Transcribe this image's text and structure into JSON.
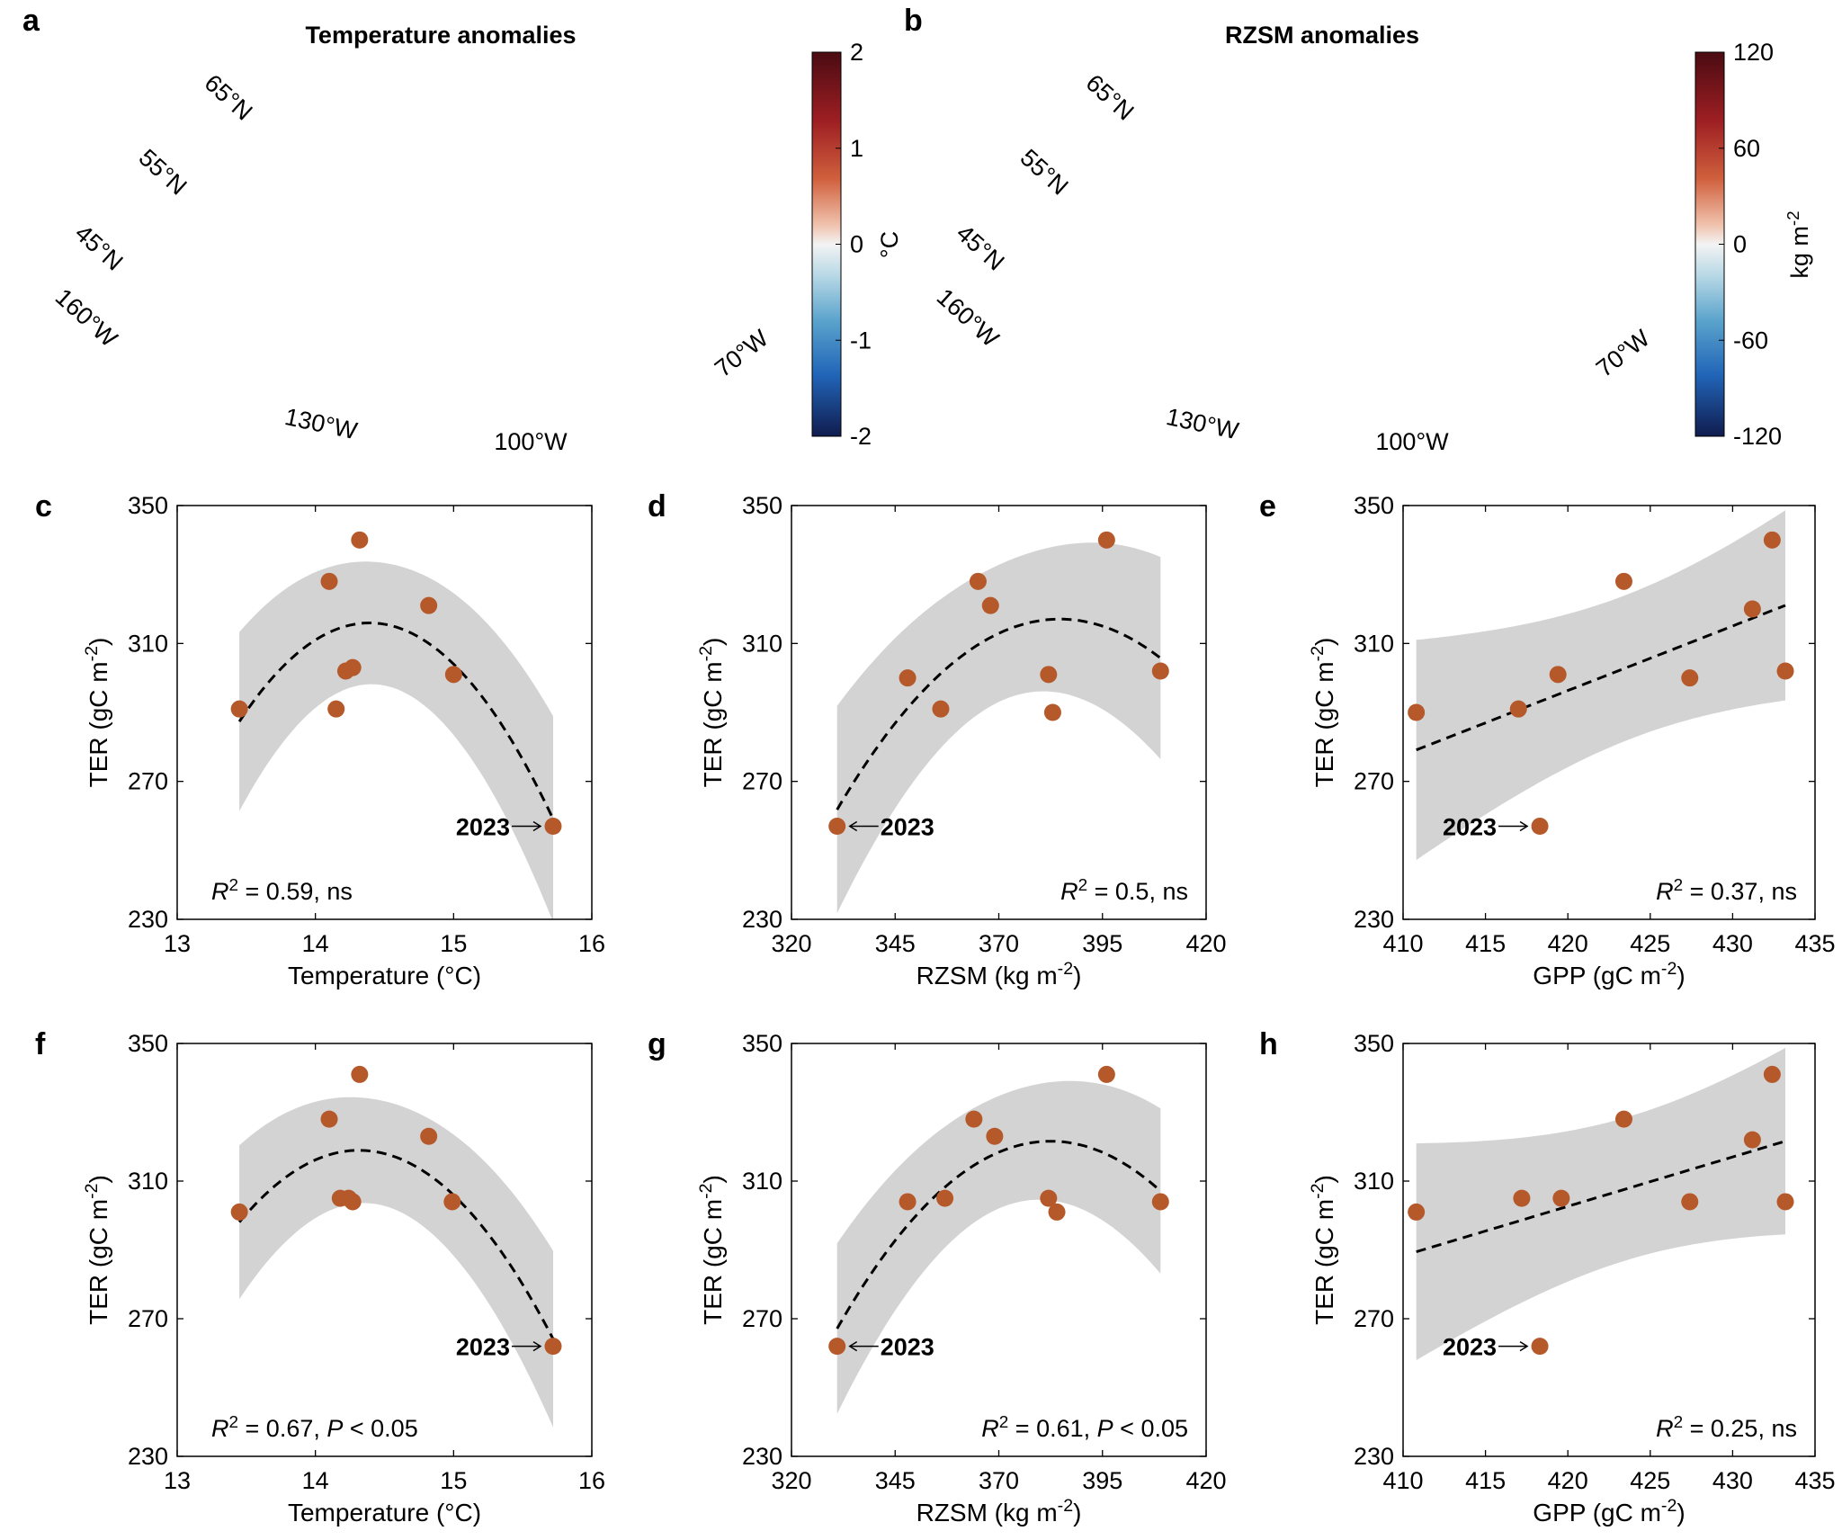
{
  "colors": {
    "point": "#B5582A",
    "ci": "#D3D3D3",
    "land": "#C8C8C8",
    "warm_dark": "#5E0D14",
    "warm_mid": "#C0392B",
    "warm_light": "#E8A188",
    "neutral": "#F4F4F4",
    "cool_light": "#A9D0E0",
    "cool_mid": "#2F79C4",
    "cool_dark": "#0E1F52"
  },
  "maps": [
    {
      "label": "a",
      "title": "Temperature anomalies",
      "colorbar": {
        "ticks": [
          "2",
          "1",
          "0",
          "-1",
          "-2"
        ],
        "unit_label": "°C",
        "unit_sup": ""
      },
      "lat_labels": [
        "65°N",
        "55°N",
        "45°N"
      ],
      "lon_labels": [
        "160°W",
        "130°W",
        "100°W",
        "70°W"
      ]
    },
    {
      "label": "b",
      "title": "RZSM anomalies",
      "colorbar": {
        "ticks": [
          "120",
          "60",
          "0",
          "-60",
          "-120"
        ],
        "unit_label": "kg m",
        "unit_sup": "-2"
      },
      "lat_labels": [
        "65°N",
        "55°N",
        "45°N"
      ],
      "lon_labels": [
        "160°W",
        "130°W",
        "100°W",
        "70°W"
      ]
    }
  ],
  "chart_data": [
    {
      "label": "c",
      "type": "scatter",
      "xlabel": "Temperature (°C)",
      "xlabel_sup": "",
      "xlabel_close": "",
      "ylabel": "TER (gC m",
      "ylabel_sup": "-2",
      "ylabel_close": ")",
      "xlim": [
        13,
        16
      ],
      "ylim": [
        230,
        350
      ],
      "xticks": [
        "13",
        "14",
        "15",
        "16"
      ],
      "yticks": [
        "230",
        "270",
        "310",
        "350"
      ],
      "x": [
        13.45,
        14.1,
        14.15,
        14.22,
        14.27,
        14.32,
        14.82,
        15.0,
        15.72
      ],
      "y": [
        291,
        328,
        291,
        302,
        303,
        340,
        321,
        301,
        257
      ],
      "fit": {
        "type": "quadratic",
        "x_range": [
          13.45,
          15.72
        ]
      },
      "highlight": {
        "year": "2023",
        "index": 8,
        "side": "left"
      },
      "stat": {
        "r2": "0.59",
        "sig_prefix": ", ",
        "sig_italic": "",
        "sig_rest": "ns",
        "align": "left"
      }
    },
    {
      "label": "d",
      "type": "scatter",
      "xlabel": "RZSM (kg m",
      "xlabel_sup": "-2",
      "xlabel_close": ")",
      "ylabel": "TER (gC m",
      "ylabel_sup": "-2",
      "ylabel_close": ")",
      "xlim": [
        320,
        420
      ],
      "ylim": [
        230,
        350
      ],
      "xticks": [
        "320",
        "345",
        "370",
        "395",
        "420"
      ],
      "yticks": [
        "230",
        "270",
        "310",
        "350"
      ],
      "x": [
        331,
        348,
        356,
        365,
        368,
        382,
        383,
        396,
        409
      ],
      "y": [
        257,
        300,
        291,
        328,
        321,
        301,
        290,
        340,
        302
      ],
      "fit": {
        "type": "quadratic",
        "x_range": [
          331,
          409
        ]
      },
      "highlight": {
        "year": "2023",
        "index": 0,
        "side": "right"
      },
      "stat": {
        "r2": "0.5",
        "sig_prefix": ", ",
        "sig_italic": "",
        "sig_rest": "ns",
        "align": "right"
      }
    },
    {
      "label": "e",
      "type": "scatter",
      "xlabel": "GPP (gC m",
      "xlabel_sup": "-2",
      "xlabel_close": ")",
      "ylabel": "TER (gC m",
      "ylabel_sup": "-2",
      "ylabel_close": ")",
      "xlim": [
        410,
        435
      ],
      "ylim": [
        230,
        350
      ],
      "xticks": [
        "410",
        "415",
        "420",
        "425",
        "430",
        "435"
      ],
      "yticks": [
        "230",
        "270",
        "310",
        "350"
      ],
      "x": [
        410.8,
        417,
        418.3,
        419.4,
        423.4,
        427.4,
        431.2,
        432.4,
        433.2
      ],
      "y": [
        290,
        291,
        257,
        301,
        328,
        300,
        320,
        340,
        302
      ],
      "fit": {
        "type": "linear",
        "x_range": [
          410.8,
          433.2
        ]
      },
      "highlight": {
        "year": "2023",
        "index": 2,
        "side": "left"
      },
      "stat": {
        "r2": "0.37",
        "sig_prefix": ", ",
        "sig_italic": "",
        "sig_rest": "ns",
        "align": "right"
      }
    },
    {
      "label": "f",
      "type": "scatter",
      "xlabel": "Temperature (°C)",
      "xlabel_sup": "",
      "xlabel_close": "",
      "ylabel": "TER (gC m",
      "ylabel_sup": "-2",
      "ylabel_close": ")",
      "xlim": [
        13,
        16
      ],
      "ylim": [
        230,
        350
      ],
      "xticks": [
        "13",
        "14",
        "15",
        "16"
      ],
      "yticks": [
        "230",
        "270",
        "310",
        "350"
      ],
      "x": [
        13.45,
        14.1,
        14.18,
        14.24,
        14.27,
        14.32,
        14.82,
        14.99,
        15.72
      ],
      "y": [
        301,
        328,
        305,
        305,
        304,
        341,
        323,
        304,
        262
      ],
      "fit": {
        "type": "quadratic",
        "x_range": [
          13.45,
          15.72
        ]
      },
      "highlight": {
        "year": "2023",
        "index": 8,
        "side": "left"
      },
      "stat": {
        "r2": "0.67",
        "sig_prefix": ", ",
        "sig_italic": "P",
        "sig_rest": " < 0.05",
        "align": "left"
      }
    },
    {
      "label": "g",
      "type": "scatter",
      "xlabel": "RZSM (kg m",
      "xlabel_sup": "-2",
      "xlabel_close": ")",
      "ylabel": "TER (gC m",
      "ylabel_sup": "-2",
      "ylabel_close": ")",
      "xlim": [
        320,
        420
      ],
      "ylim": [
        230,
        350
      ],
      "xticks": [
        "320",
        "345",
        "370",
        "395",
        "420"
      ],
      "yticks": [
        "230",
        "270",
        "310",
        "350"
      ],
      "x": [
        331,
        348,
        357,
        364,
        369,
        382,
        384,
        396,
        409
      ],
      "y": [
        262,
        304,
        305,
        328,
        323,
        305,
        301,
        341,
        304
      ],
      "fit": {
        "type": "quadratic",
        "x_range": [
          331,
          409
        ]
      },
      "highlight": {
        "year": "2023",
        "index": 0,
        "side": "right"
      },
      "stat": {
        "r2": "0.61",
        "sig_prefix": ", ",
        "sig_italic": "P",
        "sig_rest": " < 0.05",
        "align": "right"
      }
    },
    {
      "label": "h",
      "type": "scatter",
      "xlabel": "GPP (gC m",
      "xlabel_sup": "-2",
      "xlabel_close": ")",
      "ylabel": "TER (gC m",
      "ylabel_sup": "-2",
      "ylabel_close": ")",
      "xlim": [
        410,
        435
      ],
      "ylim": [
        230,
        350
      ],
      "xticks": [
        "410",
        "415",
        "420",
        "425",
        "430",
        "435"
      ],
      "yticks": [
        "230",
        "270",
        "310",
        "350"
      ],
      "x": [
        410.8,
        417.2,
        418.3,
        419.6,
        423.4,
        427.4,
        431.2,
        432.4,
        433.2
      ],
      "y": [
        301,
        305,
        262,
        305,
        328,
        304,
        322,
        341,
        304
      ],
      "fit": {
        "type": "linear",
        "x_range": [
          410.8,
          433.2
        ]
      },
      "highlight": {
        "year": "2023",
        "index": 2,
        "side": "left"
      },
      "stat": {
        "r2": "0.25",
        "sig_prefix": ", ",
        "sig_italic": "",
        "sig_rest": "ns",
        "align": "right"
      }
    }
  ]
}
